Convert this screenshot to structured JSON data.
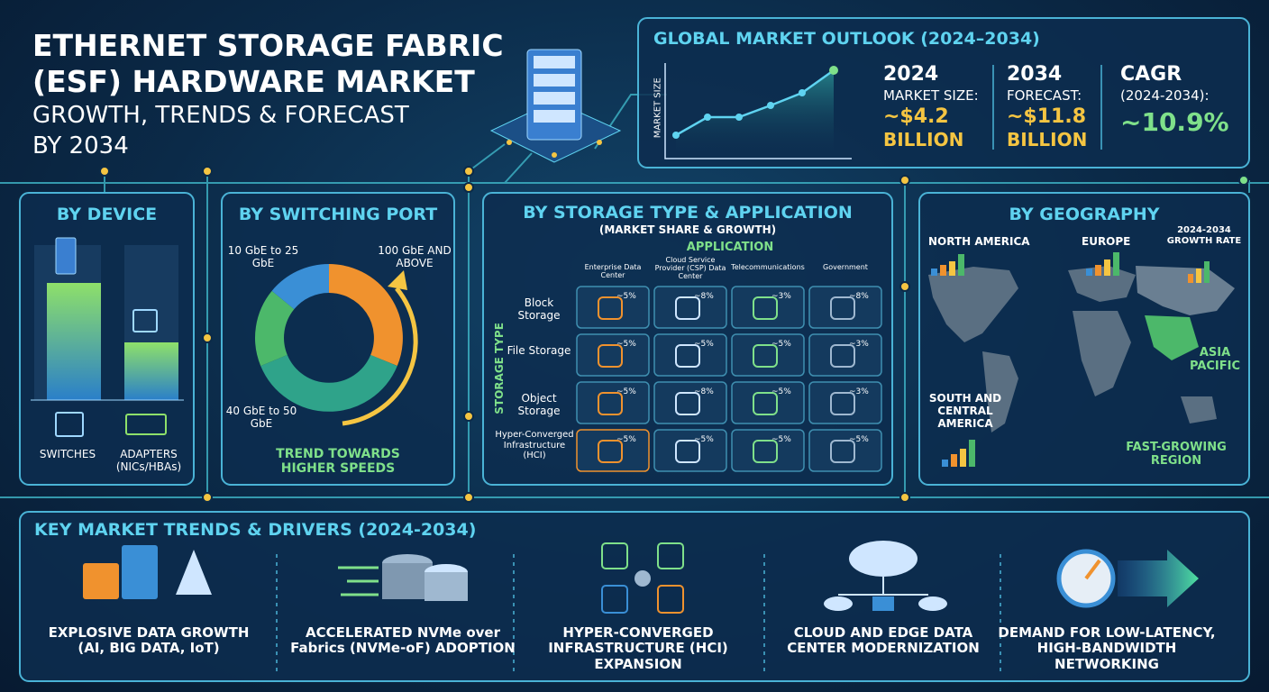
{
  "header": {
    "title_line1": "ETHERNET STORAGE FABRIC",
    "title_line2": "(ESF) HARDWARE MARKET",
    "subtitle_line1": "GROWTH, TRENDS & FORECAST",
    "subtitle_line2": "BY 2034"
  },
  "outlook": {
    "title": "GLOBAL MARKET OUTLOOK (2024–2034)",
    "y_label": "MARKET SIZE",
    "stats": [
      {
        "year": "2024",
        "label": "MARKET SIZE:",
        "value": "~$4.2",
        "unit": "BILLION"
      },
      {
        "year": "2034",
        "label": "FORECAST:",
        "value": "~$11.8",
        "unit": "BILLION"
      }
    ],
    "cagr": {
      "title": "CAGR",
      "period": "(2024-2034):",
      "value": "~10.9%"
    }
  },
  "device": {
    "title": "BY DEVICE",
    "items": [
      "SWITCHES",
      "ADAPTERS (NICs/HBAs)"
    ]
  },
  "switching": {
    "title": "BY SWITCHING PORT",
    "segments": [
      "10 GbE to 25 GbE",
      "100 GbE AND ABOVE",
      "40 GbE to 50 GbE"
    ],
    "note": "TREND TOWARDS HIGHER SPEEDS"
  },
  "storage": {
    "title": "BY STORAGE TYPE & APPLICATION",
    "subtitle": "(MARKET SHARE & GROWTH)",
    "column_header": "APPLICATION",
    "row_header": "STORAGE TYPE",
    "columns": [
      "Enterprise Data Center",
      "Cloud Service Provider (CSP) Data Center",
      "Telecommunications",
      "Government"
    ],
    "rows": [
      "Block Storage",
      "File Storage",
      "Object Storage",
      "Hyper-Converged Infrastructure (HCI)"
    ],
    "cells": [
      [
        "~5%",
        "~8%",
        "~3%",
        "~8%"
      ],
      [
        "~5%",
        "~5%",
        "~5%",
        "~3%"
      ],
      [
        "~5%",
        "~8%",
        "~5%",
        "~3%"
      ],
      [
        "~5%",
        "~5%",
        "~5%",
        "~5%"
      ]
    ]
  },
  "geography": {
    "title": "BY GEOGRAPHY",
    "north_america": "NORTH AMERICA",
    "europe": "EUROPE",
    "growth_rate": "2024-2034 GROWTH RATE",
    "asia_pacific": "ASIA PACIFIC",
    "south_central_america": "SOUTH AND CENTRAL AMERICA",
    "fast_growing": "FAST-GROWING REGION"
  },
  "trends": {
    "title": "KEY MARKET TRENDS & DRIVERS (2024-2034)",
    "items": [
      "EXPLOSIVE DATA GROWTH (AI, BIG DATA, IoT)",
      "ACCELERATED NVMe over Fabrics (NVMe-oF) ADOPTION",
      "HYPER-CONVERGED INFRASTRUCTURE (HCI) EXPANSION",
      "CLOUD AND EDGE DATA CENTER MODERNIZATION",
      "DEMAND FOR LOW-LATENCY, HIGH-BANDWIDTH NETWORKING"
    ]
  }
}
